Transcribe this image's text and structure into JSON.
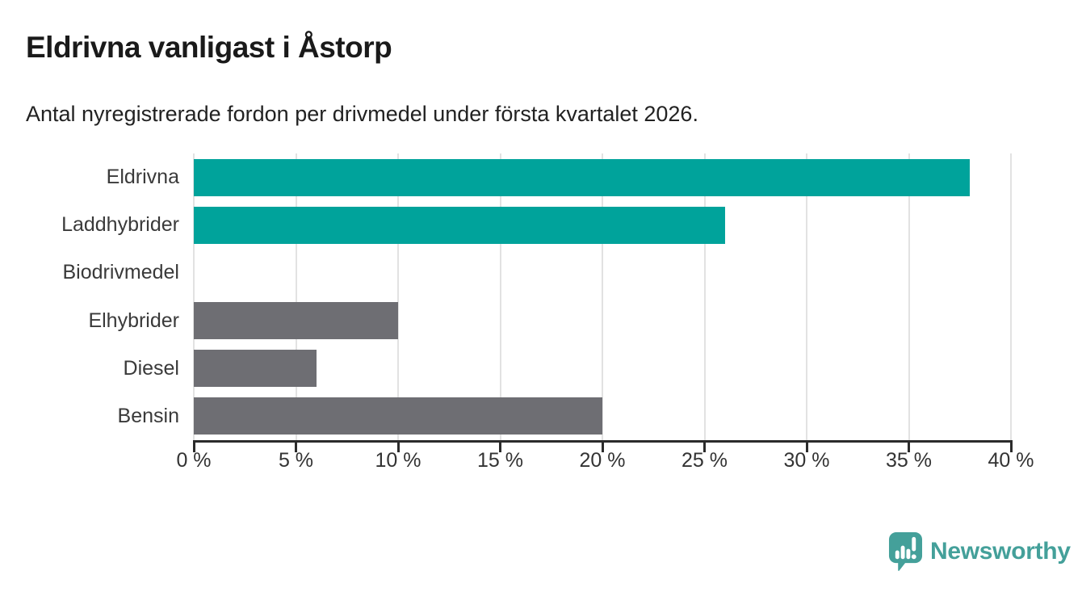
{
  "chart_data": {
    "type": "bar",
    "orientation": "horizontal",
    "title": "Eldrivna vanligast i Åstorp",
    "subtitle": "Antal nyregistrerade fordon per drivmedel under första kvartalet 2026.",
    "categories": [
      "Eldrivna",
      "Laddhybrider",
      "Biodrivmedel",
      "Elhybrider",
      "Diesel",
      "Bensin"
    ],
    "values": [
      38,
      26,
      0,
      10,
      6,
      20
    ],
    "unit": "%",
    "bar_colors": [
      "#00a39b",
      "#00a39b",
      "#00a39b",
      "#6e6e73",
      "#6e6e73",
      "#6e6e73"
    ],
    "xlim": [
      0,
      40
    ],
    "ticks": [
      0,
      5,
      10,
      15,
      20,
      25,
      30,
      35,
      40
    ],
    "tick_labels": [
      "0 %",
      "5 %",
      "10 %",
      "15 %",
      "20 %",
      "25 %",
      "30 %",
      "35 %",
      "40 %"
    ],
    "grid": true,
    "grid_color": "#e2e2e2",
    "axis_color": "#2b2b2b",
    "label_color": "#333333"
  },
  "branding": {
    "logo_text": "Newsworthy",
    "logo_color": "#44a09a"
  }
}
